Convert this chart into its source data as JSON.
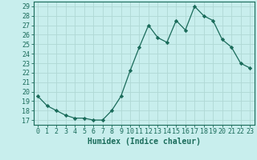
{
  "x": [
    0,
    1,
    2,
    3,
    4,
    5,
    6,
    7,
    8,
    9,
    10,
    11,
    12,
    13,
    14,
    15,
    16,
    17,
    18,
    19,
    20,
    21,
    22,
    23
  ],
  "y": [
    19.5,
    18.5,
    18.0,
    17.5,
    17.2,
    17.2,
    17.0,
    17.0,
    18.0,
    19.5,
    22.2,
    24.7,
    27.0,
    25.7,
    25.2,
    27.5,
    26.5,
    29.0,
    28.0,
    27.5,
    25.5,
    24.7,
    23.0,
    22.5
  ],
  "line_color": "#1a6b5a",
  "marker": "D",
  "marker_size": 2.2,
  "bg_color": "#c8eeed",
  "grid_color": "#b0d8d5",
  "xlabel": "Humidex (Indice chaleur)",
  "ylabel_ticks": [
    17,
    18,
    19,
    20,
    21,
    22,
    23,
    24,
    25,
    26,
    27,
    28,
    29
  ],
  "xlim": [
    -0.5,
    23.5
  ],
  "ylim": [
    16.5,
    29.5
  ],
  "xlabel_fontsize": 7,
  "tick_fontsize": 6,
  "tick_color": "#1a6b5a",
  "label_color": "#1a6b5a",
  "spine_color": "#1a6b5a"
}
